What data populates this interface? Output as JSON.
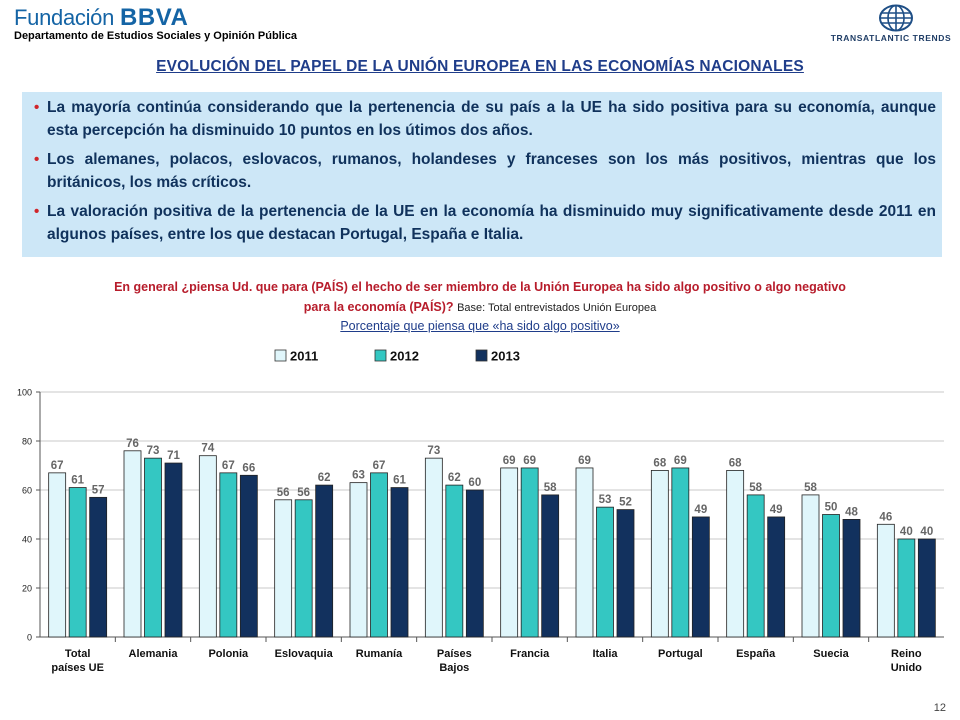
{
  "header": {
    "logo_left_word1": "Fundación",
    "logo_left_word2": "BBVA",
    "department": "Departamento de Estudios Sociales y Opinión Pública",
    "logo_right_text": "TRANSATLANTIC TRENDS"
  },
  "title": "EVOLUCIÓN DEL PAPEL DE LA UNIÓN EUROPEA EN LAS ECONOMÍAS NACIONALES",
  "bullets": [
    "La mayoría continúa considerando que la pertenencia de su país a la UE ha sido positiva para su economía, aunque esta percepción ha disminuido 10 puntos en los útimos dos años.",
    "Los alemanes, polacos, eslovacos, rumanos, holandeses y franceses son los más positivos, mientras que los británicos, los más críticos.",
    "La valoración positiva de la pertenencia de la UE en la economía ha disminuido muy significativamente desde 2011 en algunos países, entre los que destacan Portugal, España e Italia."
  ],
  "question": {
    "text_line1": "En general ¿piensa Ud. que para (PAÍS) el hecho de ser miembro de la Unión Europea ha sido algo positivo o algo negativo",
    "text_line2": "para la economía (PAÍS)?",
    "base": "Base: Total entrevistados Unión Europea",
    "subtitle": "Porcentaje que piensa que «ha sido algo positivo»"
  },
  "page_number": "12",
  "colors": {
    "s2011": "#e0f6fb",
    "s2012": "#34c7c2",
    "s2013": "#12315e",
    "accent_red": "#d0262b",
    "title_blue": "#1f3d8a"
  },
  "chart_data": {
    "type": "bar",
    "categories": [
      [
        "Total",
        "países UE"
      ],
      [
        "Alemania"
      ],
      [
        "Polonia"
      ],
      [
        "Eslovaquia"
      ],
      [
        "Rumanía"
      ],
      [
        "Países",
        "Bajos"
      ],
      [
        "Francia"
      ],
      [
        "Italia"
      ],
      [
        "Portugal"
      ],
      [
        "España"
      ],
      [
        "Suecia"
      ],
      [
        "Reino",
        "Unido"
      ]
    ],
    "series": [
      {
        "name": "2011",
        "values": [
          67,
          76,
          74,
          56,
          63,
          73,
          69,
          69,
          68,
          68,
          58,
          46
        ]
      },
      {
        "name": "2012",
        "values": [
          61,
          73,
          67,
          56,
          67,
          62,
          69,
          53,
          69,
          58,
          50,
          40
        ]
      },
      {
        "name": "2013",
        "values": [
          57,
          71,
          66,
          62,
          61,
          60,
          58,
          52,
          49,
          49,
          48,
          40
        ]
      }
    ],
    "ylim": [
      0,
      100
    ],
    "yticks": [
      0,
      20,
      40,
      60,
      80,
      100
    ],
    "grid": true,
    "legend": "top-center"
  }
}
